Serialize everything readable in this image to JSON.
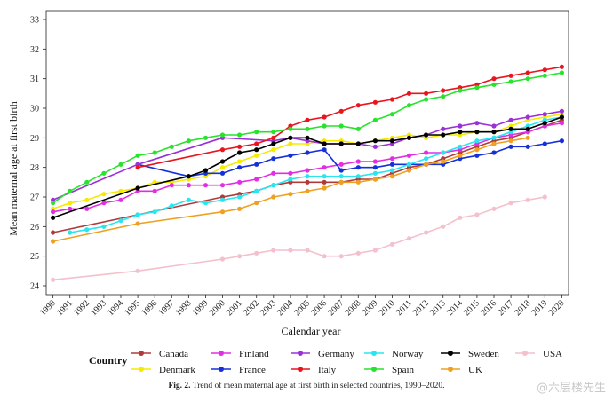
{
  "chart_data": {
    "type": "line",
    "title": "",
    "xlabel": "Calendar year",
    "ylabel": "Mean maternal age at first birth",
    "x": [
      1990,
      1991,
      1992,
      1993,
      1994,
      1995,
      1996,
      1997,
      1998,
      1999,
      2000,
      2001,
      2002,
      2003,
      2004,
      2005,
      2006,
      2007,
      2008,
      2009,
      2010,
      2011,
      2012,
      2013,
      2014,
      2015,
      2016,
      2017,
      2018,
      2019,
      2020
    ],
    "xticks": [
      "1990",
      "1991",
      "1992",
      "1993",
      "1994",
      "1995",
      "1996",
      "1997",
      "1998",
      "1999",
      "2000",
      "2001",
      "2002",
      "2003",
      "2004",
      "2005",
      "2006",
      "2007",
      "2008",
      "2009",
      "2010",
      "2011",
      "2012",
      "2013",
      "2014",
      "2015",
      "2016",
      "2017",
      "2018",
      "2019",
      "2020"
    ],
    "yticks": [
      "24",
      "25",
      "26",
      "27",
      "28",
      "29",
      "30",
      "31",
      "32",
      "33"
    ],
    "ylim": [
      23.7,
      33.3
    ],
    "xlim": [
      1989.6,
      2020.4
    ],
    "grid": false,
    "legend_title": "Country",
    "legend_position": "bottom",
    "series": [
      {
        "name": "Canada",
        "color": "#b03a3a",
        "points": [
          [
            1990,
            25.8
          ],
          [
            1995,
            26.4
          ],
          [
            2000,
            27.0
          ],
          [
            2001,
            27.1
          ],
          [
            2002,
            27.2
          ],
          [
            2003,
            27.4
          ],
          [
            2004,
            27.5
          ],
          [
            2005,
            27.5
          ],
          [
            2006,
            27.5
          ],
          [
            2007,
            27.5
          ],
          [
            2008,
            27.6
          ],
          [
            2009,
            27.6
          ],
          [
            2010,
            27.8
          ],
          [
            2011,
            28.0
          ],
          [
            2012,
            28.1
          ],
          [
            2013,
            28.3
          ],
          [
            2014,
            28.5
          ],
          [
            2015,
            28.7
          ],
          [
            2016,
            28.9
          ],
          [
            2017,
            29.0
          ],
          [
            2018,
            29.2
          ],
          [
            2019,
            29.4
          ],
          [
            2020,
            29.6
          ]
        ]
      },
      {
        "name": "Denmark",
        "color": "#f5ea00",
        "points": [
          [
            1990,
            26.6
          ],
          [
            1991,
            26.8
          ],
          [
            1992,
            26.9
          ],
          [
            1993,
            27.1
          ],
          [
            1994,
            27.2
          ],
          [
            1995,
            27.3
          ],
          [
            1996,
            27.5
          ],
          [
            1997,
            27.5
          ],
          [
            1998,
            27.6
          ],
          [
            1999,
            27.7
          ],
          [
            2000,
            28.0
          ],
          [
            2001,
            28.2
          ],
          [
            2002,
            28.4
          ],
          [
            2003,
            28.6
          ],
          [
            2004,
            28.8
          ],
          [
            2005,
            28.8
          ],
          [
            2006,
            28.9
          ],
          [
            2007,
            28.9
          ],
          [
            2008,
            28.8
          ],
          [
            2009,
            28.9
          ],
          [
            2010,
            29.0
          ],
          [
            2011,
            29.1
          ],
          [
            2012,
            29.0
          ],
          [
            2013,
            29.1
          ],
          [
            2014,
            29.1
          ],
          [
            2015,
            29.2
          ],
          [
            2016,
            29.2
          ],
          [
            2017,
            29.4
          ],
          [
            2018,
            29.6
          ],
          [
            2019,
            29.7
          ],
          [
            2020,
            29.8
          ]
        ]
      },
      {
        "name": "Finland",
        "color": "#e22ee2",
        "points": [
          [
            1990,
            26.5
          ],
          [
            1991,
            26.6
          ],
          [
            1992,
            26.6
          ],
          [
            1993,
            26.8
          ],
          [
            1994,
            26.9
          ],
          [
            1995,
            27.2
          ],
          [
            1996,
            27.2
          ],
          [
            1997,
            27.4
          ],
          [
            1998,
            27.4
          ],
          [
            1999,
            27.4
          ],
          [
            2000,
            27.4
          ],
          [
            2001,
            27.5
          ],
          [
            2002,
            27.6
          ],
          [
            2003,
            27.8
          ],
          [
            2004,
            27.8
          ],
          [
            2005,
            27.9
          ],
          [
            2006,
            28.0
          ],
          [
            2007,
            28.1
          ],
          [
            2008,
            28.2
          ],
          [
            2009,
            28.2
          ],
          [
            2010,
            28.3
          ],
          [
            2011,
            28.4
          ],
          [
            2012,
            28.5
          ],
          [
            2013,
            28.5
          ],
          [
            2014,
            28.6
          ],
          [
            2015,
            28.8
          ],
          [
            2016,
            29.0
          ],
          [
            2017,
            29.1
          ],
          [
            2018,
            29.2
          ],
          [
            2019,
            29.4
          ],
          [
            2020,
            29.5
          ]
        ]
      },
      {
        "name": "France",
        "color": "#1530d8",
        "points": [
          [
            1995,
            28.1
          ],
          [
            1998,
            27.7
          ],
          [
            1999,
            27.8
          ],
          [
            2000,
            27.8
          ],
          [
            2001,
            28.0
          ],
          [
            2002,
            28.1
          ],
          [
            2003,
            28.3
          ],
          [
            2004,
            28.4
          ],
          [
            2005,
            28.5
          ],
          [
            2006,
            28.6
          ],
          [
            2007,
            27.9
          ],
          [
            2008,
            28.0
          ],
          [
            2009,
            28.0
          ],
          [
            2010,
            28.1
          ],
          [
            2011,
            28.1
          ],
          [
            2012,
            28.1
          ],
          [
            2013,
            28.1
          ],
          [
            2014,
            28.3
          ],
          [
            2015,
            28.4
          ],
          [
            2016,
            28.5
          ],
          [
            2017,
            28.7
          ],
          [
            2018,
            28.7
          ],
          [
            2019,
            28.8
          ],
          [
            2020,
            28.9
          ]
        ]
      },
      {
        "name": "Germany",
        "color": "#9b30d9",
        "points": [
          [
            1990,
            26.9
          ],
          [
            1995,
            28.1
          ],
          [
            2000,
            29.0
          ],
          [
            2003,
            28.9
          ],
          [
            2004,
            29.0
          ],
          [
            2005,
            28.9
          ],
          [
            2006,
            28.8
          ],
          [
            2007,
            28.8
          ],
          [
            2008,
            28.8
          ],
          [
            2009,
            28.7
          ],
          [
            2010,
            28.8
          ],
          [
            2011,
            29.0
          ],
          [
            2012,
            29.1
          ],
          [
            2013,
            29.3
          ],
          [
            2014,
            29.4
          ],
          [
            2015,
            29.5
          ],
          [
            2016,
            29.4
          ],
          [
            2017,
            29.6
          ],
          [
            2018,
            29.7
          ],
          [
            2019,
            29.8
          ],
          [
            2020,
            29.9
          ]
        ]
      },
      {
        "name": "Italy",
        "color": "#e8141e",
        "points": [
          [
            1995,
            28.0
          ],
          [
            2000,
            28.6
          ],
          [
            2001,
            28.7
          ],
          [
            2002,
            28.8
          ],
          [
            2003,
            29.0
          ],
          [
            2004,
            29.4
          ],
          [
            2005,
            29.6
          ],
          [
            2006,
            29.7
          ],
          [
            2007,
            29.9
          ],
          [
            2008,
            30.1
          ],
          [
            2009,
            30.2
          ],
          [
            2010,
            30.3
          ],
          [
            2011,
            30.5
          ],
          [
            2012,
            30.5
          ],
          [
            2013,
            30.6
          ],
          [
            2014,
            30.7
          ],
          [
            2015,
            30.8
          ],
          [
            2016,
            31.0
          ],
          [
            2017,
            31.1
          ],
          [
            2018,
            31.2
          ],
          [
            2019,
            31.3
          ],
          [
            2020,
            31.4
          ]
        ]
      },
      {
        "name": "Norway",
        "color": "#27e6f0",
        "points": [
          [
            1991,
            25.8
          ],
          [
            1992,
            25.9
          ],
          [
            1993,
            26.0
          ],
          [
            1994,
            26.2
          ],
          [
            1995,
            26.4
          ],
          [
            1996,
            26.5
          ],
          [
            1997,
            26.7
          ],
          [
            1998,
            26.9
          ],
          [
            1999,
            26.8
          ],
          [
            2000,
            26.9
          ],
          [
            2001,
            27.0
          ],
          [
            2002,
            27.2
          ],
          [
            2003,
            27.4
          ],
          [
            2004,
            27.6
          ],
          [
            2005,
            27.7
          ],
          [
            2006,
            27.7
          ],
          [
            2007,
            27.7
          ],
          [
            2008,
            27.7
          ],
          [
            2009,
            27.8
          ],
          [
            2010,
            27.9
          ],
          [
            2011,
            28.1
          ],
          [
            2012,
            28.3
          ],
          [
            2013,
            28.5
          ],
          [
            2014,
            28.7
          ],
          [
            2015,
            28.9
          ],
          [
            2016,
            29.0
          ],
          [
            2017,
            29.2
          ],
          [
            2018,
            29.4
          ],
          [
            2019,
            29.6
          ],
          [
            2020,
            29.7
          ]
        ]
      },
      {
        "name": "Spain",
        "color": "#27e32b",
        "points": [
          [
            1990,
            26.8
          ],
          [
            1991,
            27.2
          ],
          [
            1992,
            27.5
          ],
          [
            1993,
            27.8
          ],
          [
            1994,
            28.1
          ],
          [
            1995,
            28.4
          ],
          [
            1996,
            28.5
          ],
          [
            1997,
            28.7
          ],
          [
            1998,
            28.9
          ],
          [
            1999,
            29.0
          ],
          [
            2000,
            29.1
          ],
          [
            2001,
            29.1
          ],
          [
            2002,
            29.2
          ],
          [
            2003,
            29.2
          ],
          [
            2004,
            29.3
          ],
          [
            2005,
            29.3
          ],
          [
            2006,
            29.4
          ],
          [
            2007,
            29.4
          ],
          [
            2008,
            29.3
          ],
          [
            2009,
            29.6
          ],
          [
            2010,
            29.8
          ],
          [
            2011,
            30.1
          ],
          [
            2012,
            30.3
          ],
          [
            2013,
            30.4
          ],
          [
            2014,
            30.6
          ],
          [
            2015,
            30.7
          ],
          [
            2016,
            30.8
          ],
          [
            2017,
            30.9
          ],
          [
            2018,
            31.0
          ],
          [
            2019,
            31.1
          ],
          [
            2020,
            31.2
          ]
        ]
      },
      {
        "name": "Sweden",
        "color": "#000000",
        "points": [
          [
            1990,
            26.3
          ],
          [
            1995,
            27.3
          ],
          [
            1998,
            27.7
          ],
          [
            1999,
            27.9
          ],
          [
            2000,
            28.2
          ],
          [
            2001,
            28.5
          ],
          [
            2002,
            28.6
          ],
          [
            2003,
            28.8
          ],
          [
            2004,
            29.0
          ],
          [
            2005,
            29.0
          ],
          [
            2006,
            28.8
          ],
          [
            2007,
            28.8
          ],
          [
            2008,
            28.8
          ],
          [
            2009,
            28.9
          ],
          [
            2010,
            28.9
          ],
          [
            2011,
            29.0
          ],
          [
            2012,
            29.1
          ],
          [
            2013,
            29.1
          ],
          [
            2014,
            29.2
          ],
          [
            2015,
            29.2
          ],
          [
            2016,
            29.2
          ],
          [
            2017,
            29.3
          ],
          [
            2018,
            29.3
          ],
          [
            2019,
            29.5
          ],
          [
            2020,
            29.7
          ]
        ]
      },
      {
        "name": "UK",
        "color": "#f0a020",
        "points": [
          [
            1990,
            25.5
          ],
          [
            1995,
            26.1
          ],
          [
            2000,
            26.5
          ],
          [
            2001,
            26.6
          ],
          [
            2002,
            26.8
          ],
          [
            2003,
            27.0
          ],
          [
            2004,
            27.1
          ],
          [
            2005,
            27.2
          ],
          [
            2006,
            27.3
          ],
          [
            2007,
            27.5
          ],
          [
            2008,
            27.5
          ],
          [
            2009,
            27.6
          ],
          [
            2010,
            27.7
          ],
          [
            2011,
            27.9
          ],
          [
            2012,
            28.1
          ],
          [
            2013,
            28.2
          ],
          [
            2014,
            28.4
          ],
          [
            2015,
            28.6
          ],
          [
            2016,
            28.8
          ],
          [
            2017,
            28.9
          ],
          [
            2018,
            29.0
          ]
        ]
      },
      {
        "name": "USA",
        "color": "#f4c0cc",
        "points": [
          [
            1990,
            24.2
          ],
          [
            1995,
            24.5
          ],
          [
            2000,
            24.9
          ],
          [
            2001,
            25.0
          ],
          [
            2002,
            25.1
          ],
          [
            2003,
            25.2
          ],
          [
            2004,
            25.2
          ],
          [
            2005,
            25.2
          ],
          [
            2006,
            25.0
          ],
          [
            2007,
            25.0
          ],
          [
            2008,
            25.1
          ],
          [
            2009,
            25.2
          ],
          [
            2010,
            25.4
          ],
          [
            2011,
            25.6
          ],
          [
            2012,
            25.8
          ],
          [
            2013,
            26.0
          ],
          [
            2014,
            26.3
          ],
          [
            2015,
            26.4
          ],
          [
            2016,
            26.6
          ],
          [
            2017,
            26.8
          ],
          [
            2018,
            26.9
          ],
          [
            2019,
            27.0
          ]
        ]
      }
    ],
    "legend_rows": [
      [
        "Canada",
        "Finland",
        "Germany",
        "Norway",
        "Sweden",
        "USA"
      ],
      [
        "Denmark",
        "France",
        "Italy",
        "Spain",
        "UK"
      ]
    ]
  },
  "caption": {
    "label": "Fig. 2.",
    "text": "Trend of mean maternal age at first birth in selected countries, 1990–2020."
  },
  "watermark": "@六层楼先生"
}
